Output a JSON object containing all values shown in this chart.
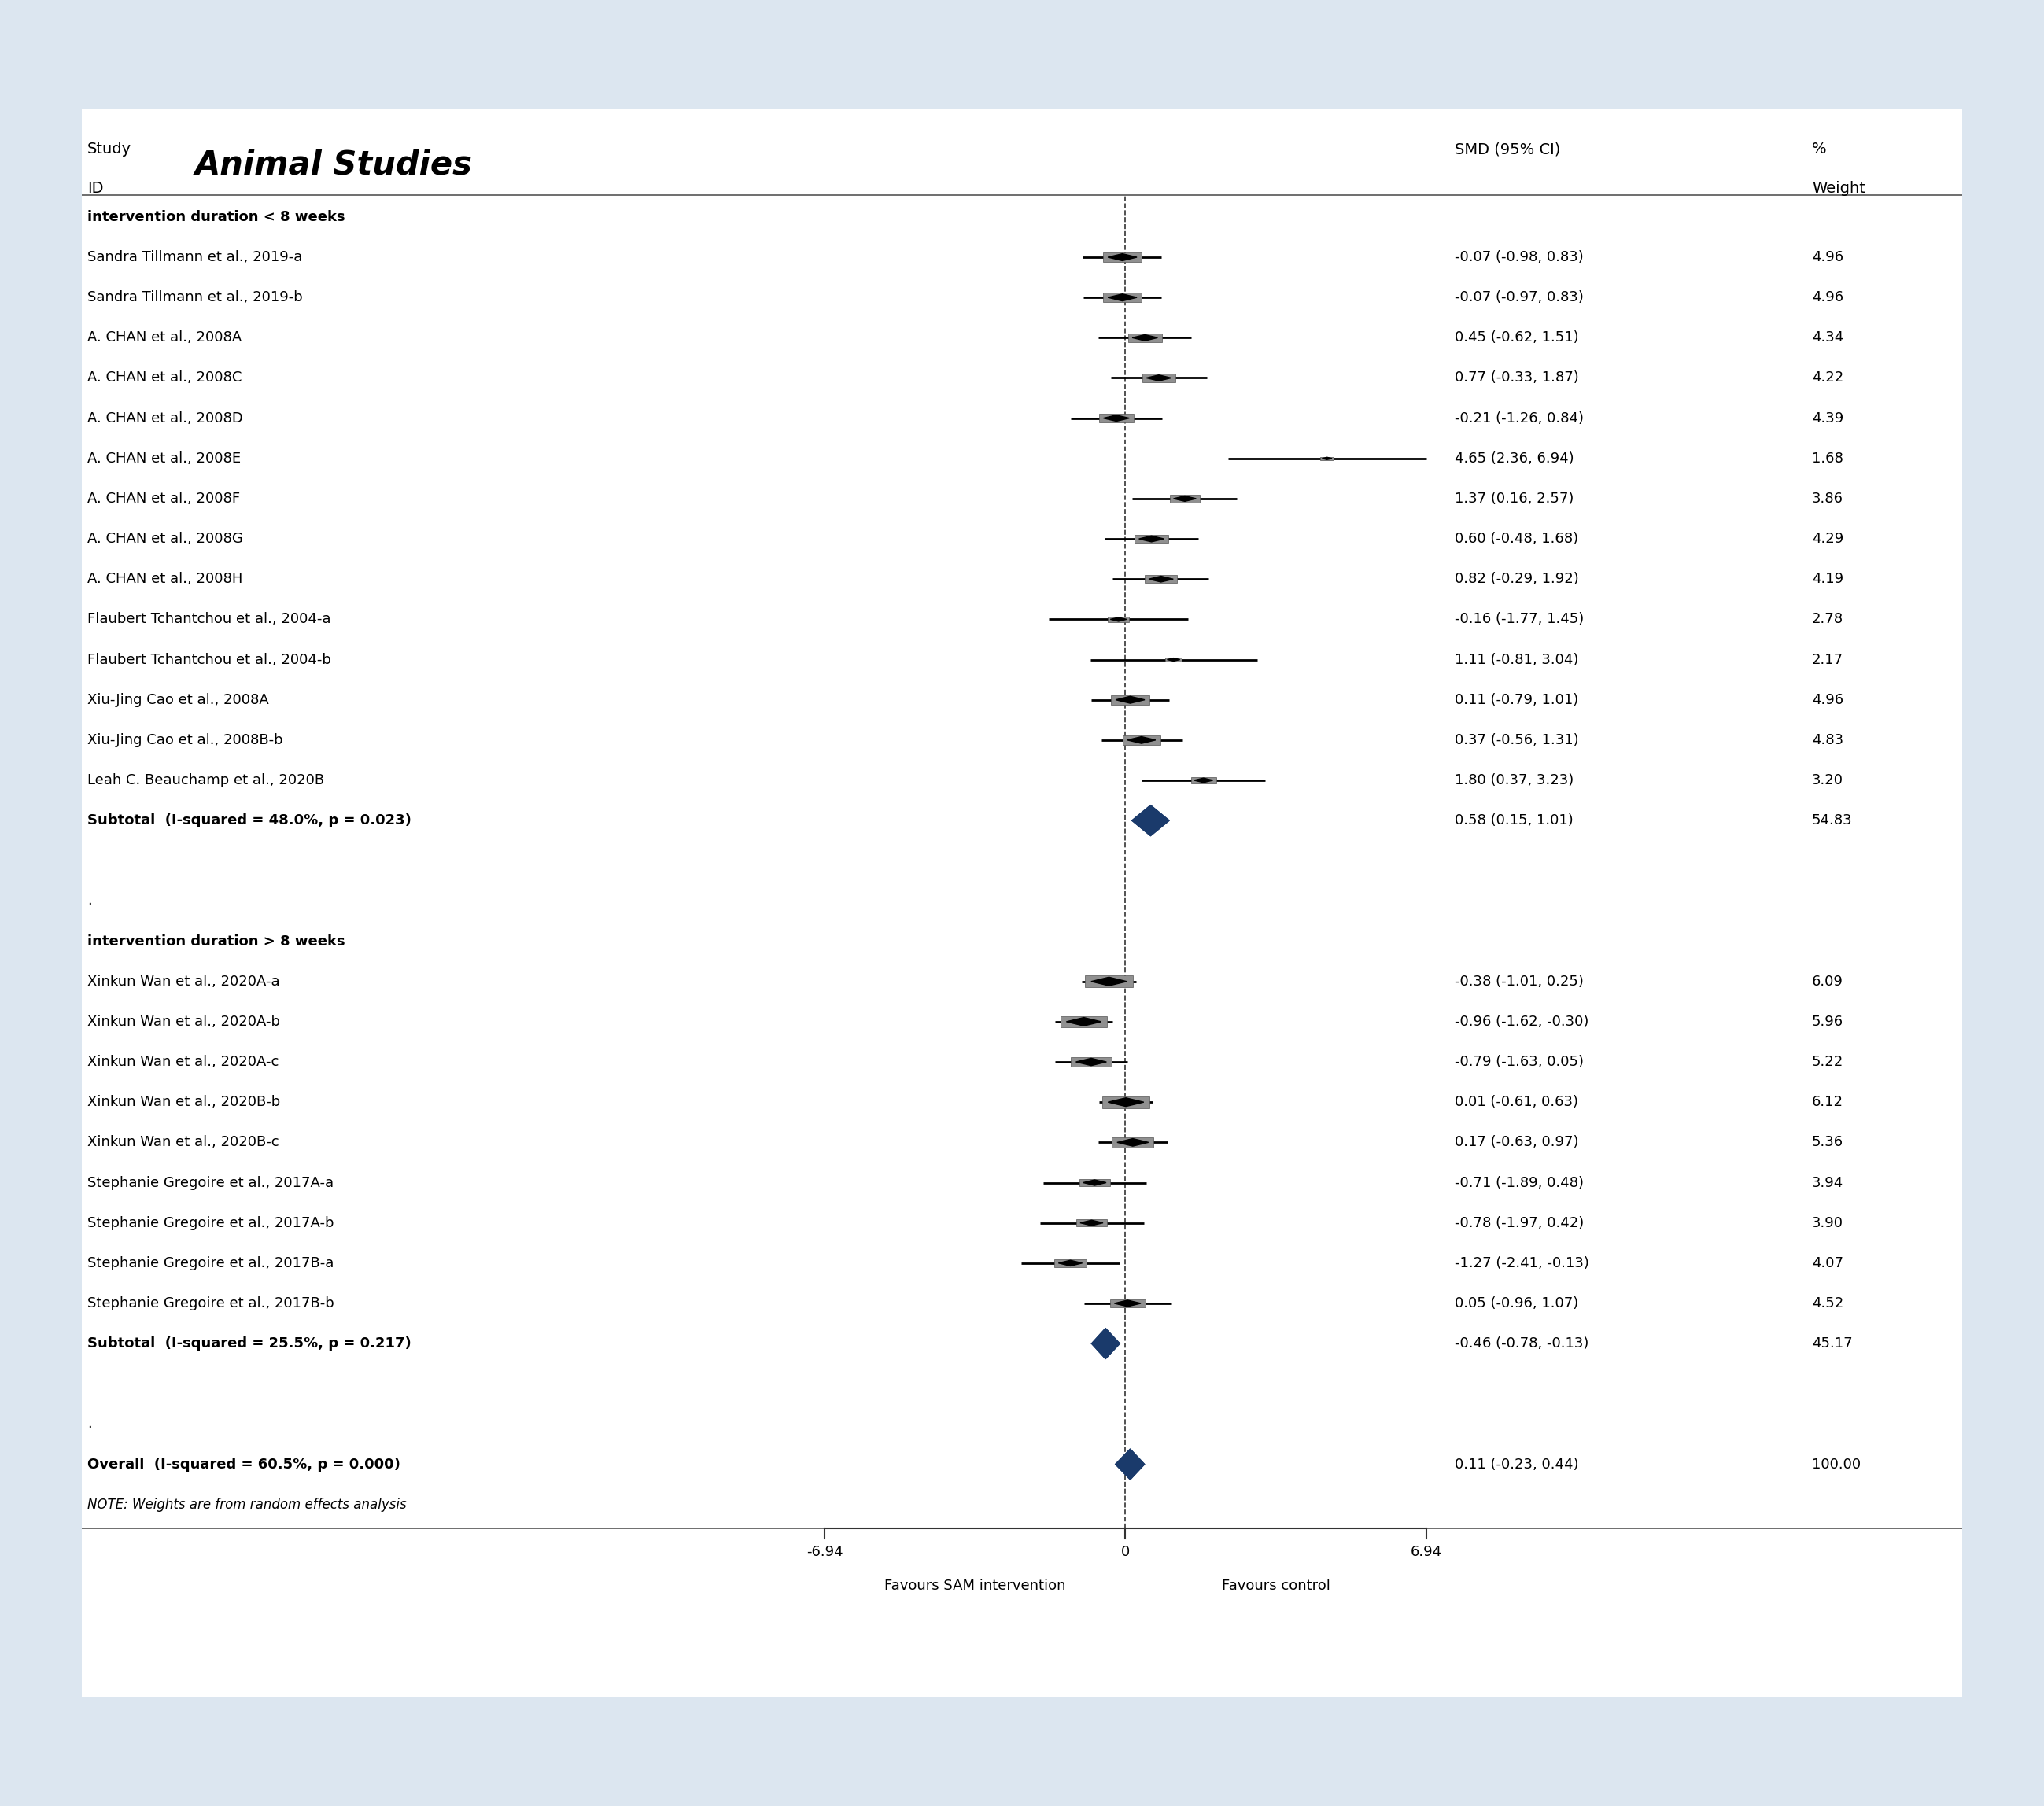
{
  "background_color": "#dce6f0",
  "plot_bg_color": "#ffffff",
  "x_min": -6.94,
  "x_max": 6.94,
  "x_ticks": [
    -6.94,
    0,
    6.94
  ],
  "x_label_left": "Favours SAM intervention",
  "x_label_right": "Favours control",
  "group1_label": "intervention duration < 8 weeks",
  "group2_label": "intervention duration > 8 weeks",
  "studies_group1": [
    {
      "label": "Sandra Tillmann et al., 2019-a",
      "smd": -0.07,
      "ci_lo": -0.98,
      "ci_hi": 0.83,
      "weight": 4.96,
      "smd_str": "-0.07 (-0.98, 0.83)",
      "wt_str": "4.96"
    },
    {
      "label": "Sandra Tillmann et al., 2019-b",
      "smd": -0.07,
      "ci_lo": -0.97,
      "ci_hi": 0.83,
      "weight": 4.96,
      "smd_str": "-0.07 (-0.97, 0.83)",
      "wt_str": "4.96"
    },
    {
      "label": "A. CHAN et al., 2008A",
      "smd": 0.45,
      "ci_lo": -0.62,
      "ci_hi": 1.51,
      "weight": 4.34,
      "smd_str": "0.45 (-0.62, 1.51)",
      "wt_str": "4.34"
    },
    {
      "label": "A. CHAN et al., 2008C",
      "smd": 0.77,
      "ci_lo": -0.33,
      "ci_hi": 1.87,
      "weight": 4.22,
      "smd_str": "0.77 (-0.33, 1.87)",
      "wt_str": "4.22"
    },
    {
      "label": "A. CHAN et al., 2008D",
      "smd": -0.21,
      "ci_lo": -1.26,
      "ci_hi": 0.84,
      "weight": 4.39,
      "smd_str": "-0.21 (-1.26, 0.84)",
      "wt_str": "4.39"
    },
    {
      "label": "A. CHAN et al., 2008E",
      "smd": 4.65,
      "ci_lo": 2.36,
      "ci_hi": 6.94,
      "weight": 1.68,
      "smd_str": "4.65 (2.36, 6.94)",
      "wt_str": "1.68"
    },
    {
      "label": "A. CHAN et al., 2008F",
      "smd": 1.37,
      "ci_lo": 0.16,
      "ci_hi": 2.57,
      "weight": 3.86,
      "smd_str": "1.37 (0.16, 2.57)",
      "wt_str": "3.86"
    },
    {
      "label": "A. CHAN et al., 2008G",
      "smd": 0.6,
      "ci_lo": -0.48,
      "ci_hi": 1.68,
      "weight": 4.29,
      "smd_str": "0.60 (-0.48, 1.68)",
      "wt_str": "4.29"
    },
    {
      "label": "A. CHAN et al., 2008H",
      "smd": 0.82,
      "ci_lo": -0.29,
      "ci_hi": 1.92,
      "weight": 4.19,
      "smd_str": "0.82 (-0.29, 1.92)",
      "wt_str": "4.19"
    },
    {
      "label": "Flaubert Tchantchou et al., 2004-a",
      "smd": -0.16,
      "ci_lo": -1.77,
      "ci_hi": 1.45,
      "weight": 2.78,
      "smd_str": "-0.16 (-1.77, 1.45)",
      "wt_str": "2.78"
    },
    {
      "label": "Flaubert Tchantchou et al., 2004-b",
      "smd": 1.11,
      "ci_lo": -0.81,
      "ci_hi": 3.04,
      "weight": 2.17,
      "smd_str": "1.11 (-0.81, 3.04)",
      "wt_str": "2.17"
    },
    {
      "label": "Xiu-Jing Cao et al., 2008A",
      "smd": 0.11,
      "ci_lo": -0.79,
      "ci_hi": 1.01,
      "weight": 4.96,
      "smd_str": "0.11 (-0.79, 1.01)",
      "wt_str": "4.96"
    },
    {
      "label": "Xiu-Jing Cao et al., 2008B-b",
      "smd": 0.37,
      "ci_lo": -0.56,
      "ci_hi": 1.31,
      "weight": 4.83,
      "smd_str": "0.37 (-0.56, 1.31)",
      "wt_str": "4.83"
    },
    {
      "label": "Leah C. Beauchamp et al., 2020B",
      "smd": 1.8,
      "ci_lo": 0.37,
      "ci_hi": 3.23,
      "weight": 3.2,
      "smd_str": "1.80 (0.37, 3.23)",
      "wt_str": "3.20"
    }
  ],
  "subtotal1": {
    "label": "Subtotal  (I-squared = 48.0%, p = 0.023)",
    "smd": 0.58,
    "ci_lo": 0.15,
    "ci_hi": 1.01,
    "smd_str": "0.58 (0.15, 1.01)",
    "wt_str": "54.83"
  },
  "studies_group2": [
    {
      "label": "Xinkun Wan et al., 2020A-a",
      "smd": -0.38,
      "ci_lo": -1.01,
      "ci_hi": 0.25,
      "weight": 6.09,
      "smd_str": "-0.38 (-1.01, 0.25)",
      "wt_str": "6.09"
    },
    {
      "label": "Xinkun Wan et al., 2020A-b",
      "smd": -0.96,
      "ci_lo": -1.62,
      "ci_hi": -0.3,
      "weight": 5.96,
      "smd_str": "-0.96 (-1.62, -0.30)",
      "wt_str": "5.96"
    },
    {
      "label": "Xinkun Wan et al., 2020A-c",
      "smd": -0.79,
      "ci_lo": -1.63,
      "ci_hi": 0.05,
      "weight": 5.22,
      "smd_str": "-0.79 (-1.63, 0.05)",
      "wt_str": "5.22"
    },
    {
      "label": "Xinkun Wan et al., 2020B-b",
      "smd": 0.01,
      "ci_lo": -0.61,
      "ci_hi": 0.63,
      "weight": 6.12,
      "smd_str": "0.01 (-0.61, 0.63)",
      "wt_str": "6.12"
    },
    {
      "label": "Xinkun Wan et al., 2020B-c",
      "smd": 0.17,
      "ci_lo": -0.63,
      "ci_hi": 0.97,
      "weight": 5.36,
      "smd_str": "0.17 (-0.63, 0.97)",
      "wt_str": "5.36"
    },
    {
      "label": "Stephanie Gregoire et al., 2017A-a",
      "smd": -0.71,
      "ci_lo": -1.89,
      "ci_hi": 0.48,
      "weight": 3.94,
      "smd_str": "-0.71 (-1.89, 0.48)",
      "wt_str": "3.94"
    },
    {
      "label": "Stephanie Gregoire et al., 2017A-b",
      "smd": -0.78,
      "ci_lo": -1.97,
      "ci_hi": 0.42,
      "weight": 3.9,
      "smd_str": "-0.78 (-1.97, 0.42)",
      "wt_str": "3.90"
    },
    {
      "label": "Stephanie Gregoire et al., 2017B-a",
      "smd": -1.27,
      "ci_lo": -2.41,
      "ci_hi": -0.13,
      "weight": 4.07,
      "smd_str": "-1.27 (-2.41, -0.13)",
      "wt_str": "4.07"
    },
    {
      "label": "Stephanie Gregoire et al., 2017B-b",
      "smd": 0.05,
      "ci_lo": -0.96,
      "ci_hi": 1.07,
      "weight": 4.52,
      "smd_str": "0.05 (-0.96, 1.07)",
      "wt_str": "4.52"
    }
  ],
  "subtotal2": {
    "label": "Subtotal  (I-squared = 25.5%, p = 0.217)",
    "smd": -0.46,
    "ci_lo": -0.78,
    "ci_hi": -0.13,
    "smd_str": "-0.46 (-0.78, -0.13)",
    "wt_str": "45.17"
  },
  "overall": {
    "label": "Overall  (I-squared = 60.5%, p = 0.000)",
    "smd": 0.11,
    "ci_lo": -0.23,
    "ci_hi": 0.44,
    "smd_str": "0.11 (-0.23, 0.44)",
    "wt_str": "100.00"
  },
  "note": "NOTE: Weights are from random effects analysis",
  "diamond_color": "#1a3a6b",
  "ci_line_color": "#000000",
  "box_color": "#909090"
}
